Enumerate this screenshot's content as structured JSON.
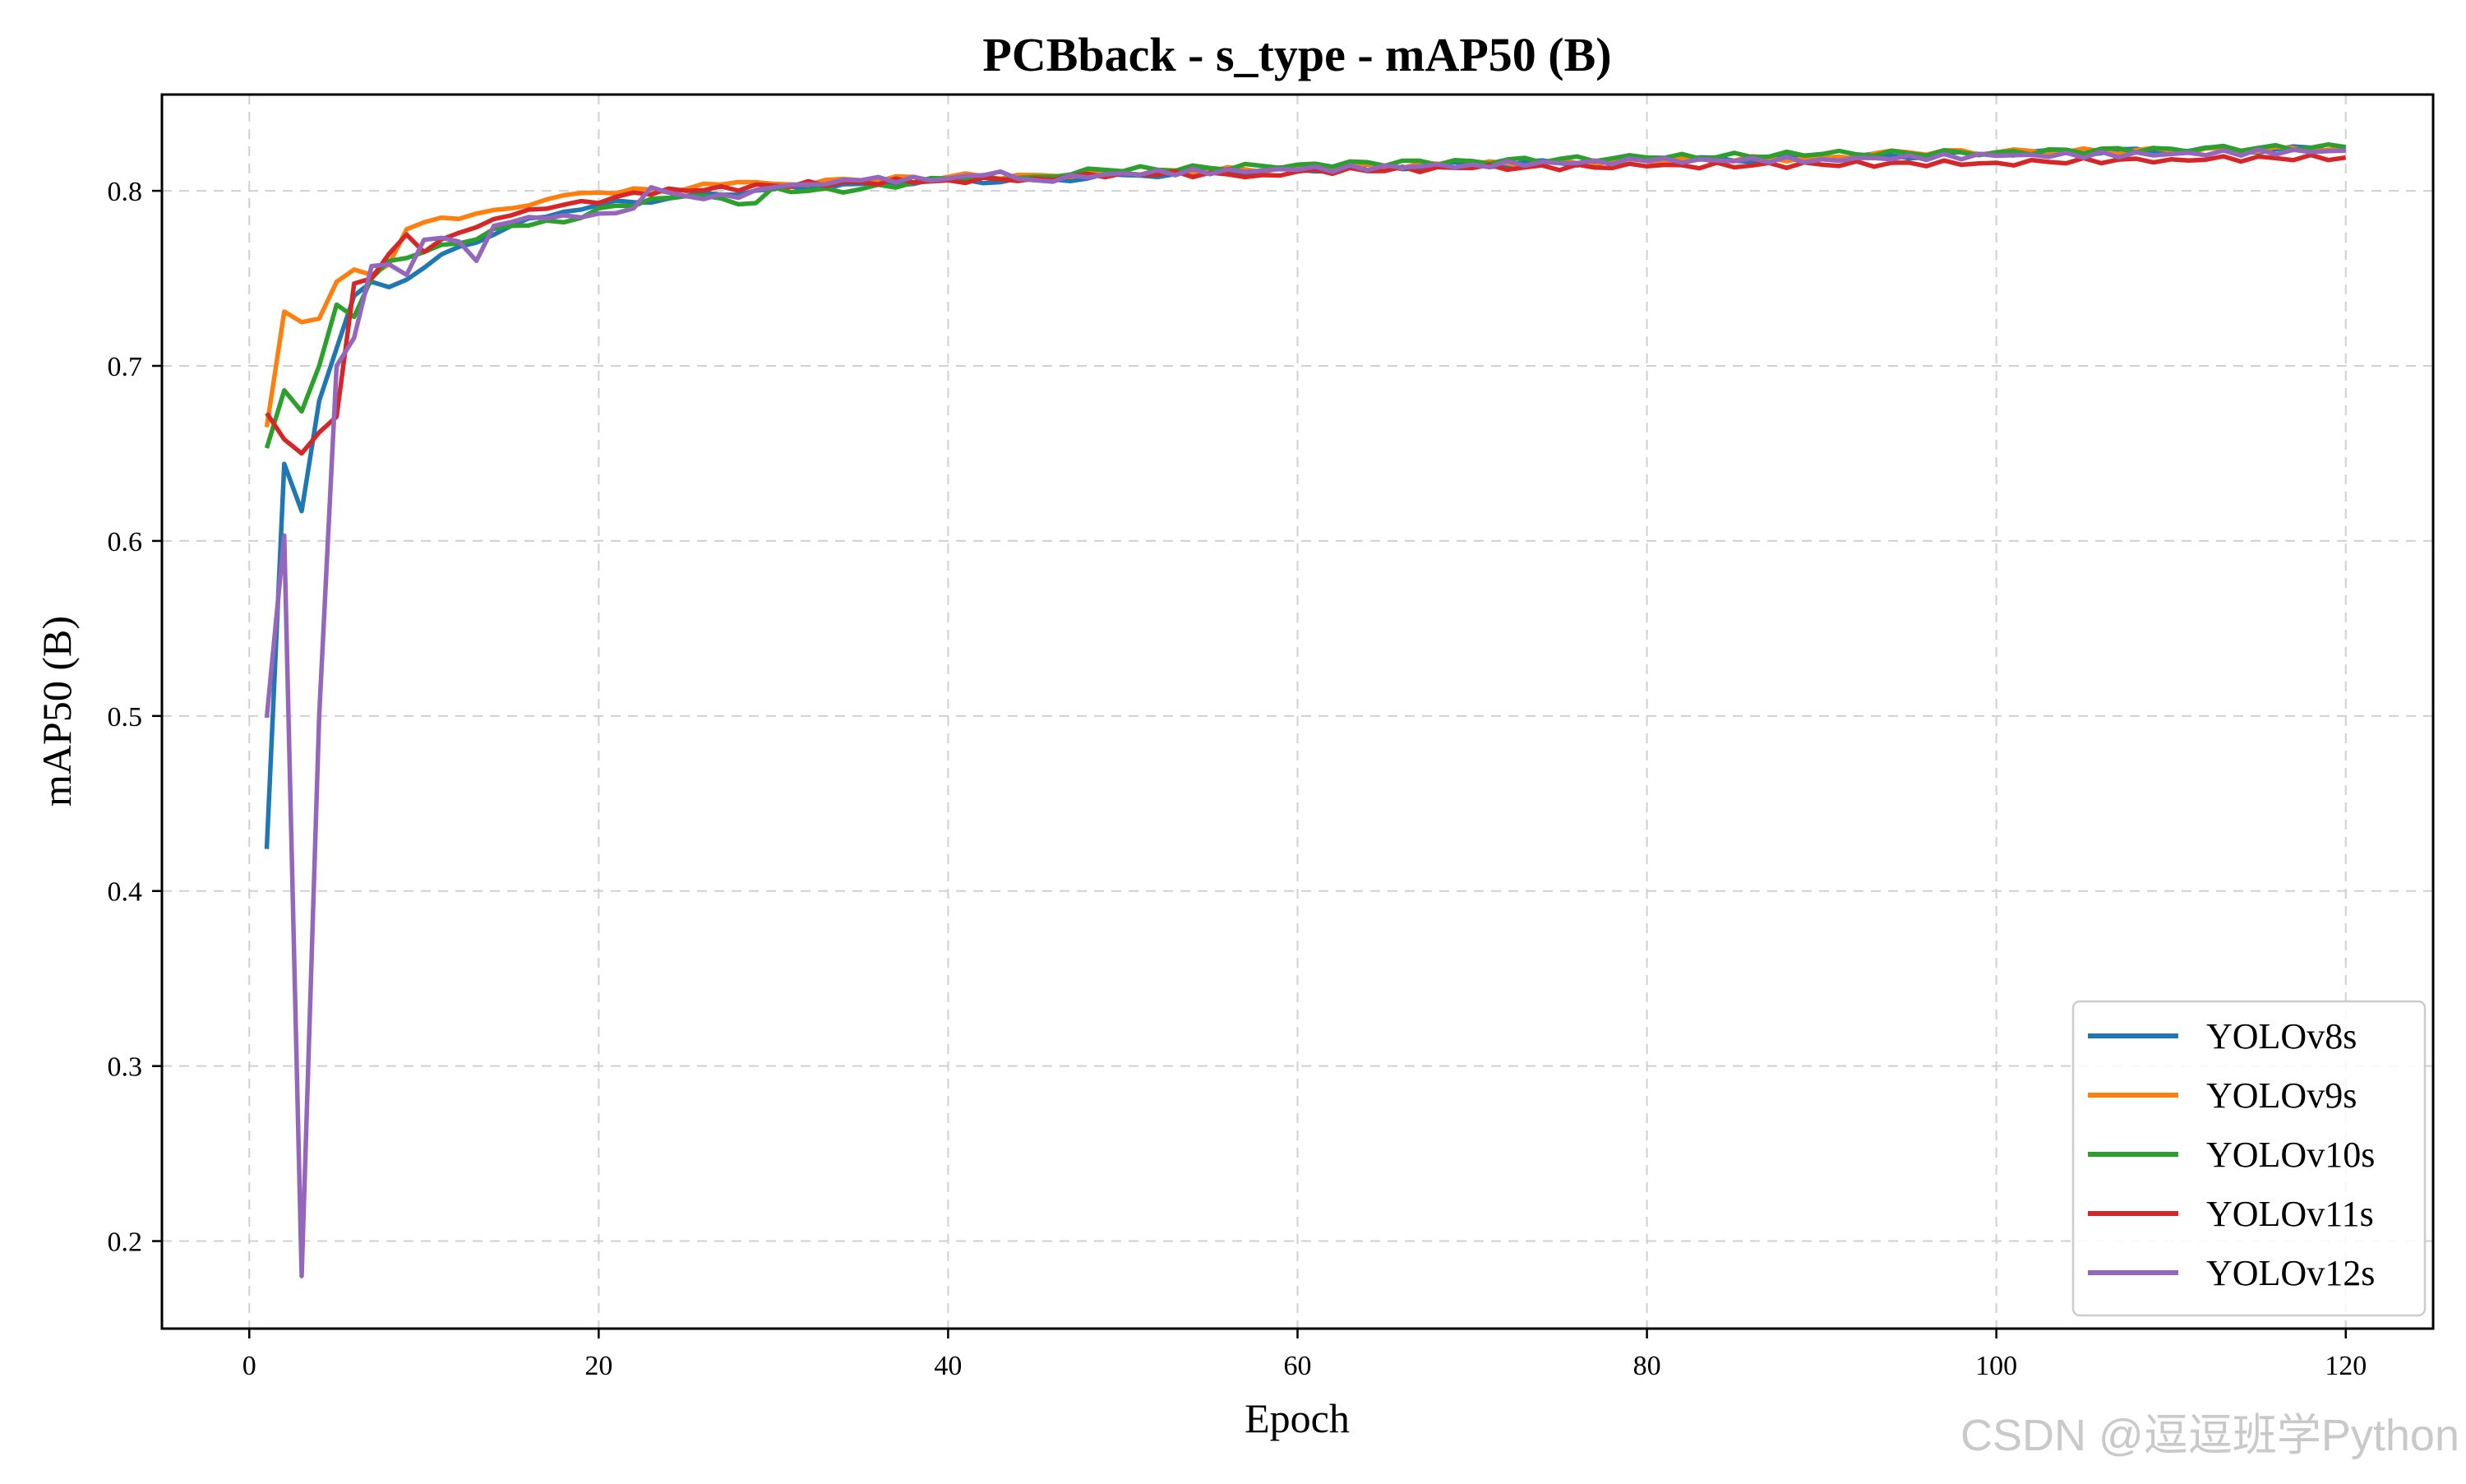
{
  "chart_data": {
    "type": "line",
    "title": "PCBback - s_type - mAP50 (B)",
    "xlabel": "Epoch",
    "ylabel": "mAP50 (B)",
    "xlim": [
      -5,
      125
    ],
    "ylim": [
      0.15,
      0.855
    ],
    "xticks": [
      0,
      20,
      40,
      60,
      80,
      100,
      120
    ],
    "yticks": [
      0.2,
      0.3,
      0.4,
      0.5,
      0.6,
      0.7,
      0.8
    ],
    "grid": true,
    "legend_position": "lower-right",
    "epochs": [
      1,
      120
    ],
    "series": [
      {
        "name": "YOLOv8s",
        "color": "#1f77b4",
        "anchors": [
          [
            1,
            0.424
          ],
          [
            2,
            0.644
          ],
          [
            3,
            0.617
          ],
          [
            4,
            0.68
          ],
          [
            5,
            0.71
          ],
          [
            6,
            0.74
          ],
          [
            7,
            0.748
          ],
          [
            8,
            0.745
          ],
          [
            10,
            0.756
          ],
          [
            12,
            0.768
          ],
          [
            15,
            0.78
          ],
          [
            18,
            0.788
          ],
          [
            20,
            0.792
          ],
          [
            25,
            0.797
          ],
          [
            30,
            0.801
          ],
          [
            35,
            0.804
          ],
          [
            40,
            0.806
          ],
          [
            45,
            0.806
          ],
          [
            50,
            0.809
          ],
          [
            60,
            0.812
          ],
          [
            70,
            0.815
          ],
          [
            80,
            0.817
          ],
          [
            90,
            0.819
          ],
          [
            100,
            0.821
          ],
          [
            110,
            0.823
          ],
          [
            120,
            0.824
          ]
        ]
      },
      {
        "name": "YOLOv9s",
        "color": "#ff7f0e",
        "anchors": [
          [
            1,
            0.665
          ],
          [
            2,
            0.731
          ],
          [
            3,
            0.725
          ],
          [
            4,
            0.727
          ],
          [
            5,
            0.748
          ],
          [
            6,
            0.755
          ],
          [
            7,
            0.752
          ],
          [
            8,
            0.758
          ],
          [
            9,
            0.778
          ],
          [
            10,
            0.782
          ],
          [
            12,
            0.784
          ],
          [
            13,
            0.787
          ],
          [
            15,
            0.79
          ],
          [
            17,
            0.795
          ],
          [
            20,
            0.799
          ],
          [
            25,
            0.801
          ],
          [
            28,
            0.805
          ],
          [
            30,
            0.804
          ],
          [
            35,
            0.806
          ],
          [
            40,
            0.808
          ],
          [
            45,
            0.809
          ],
          [
            50,
            0.81
          ],
          [
            60,
            0.813
          ],
          [
            70,
            0.815
          ],
          [
            80,
            0.817
          ],
          [
            90,
            0.819
          ],
          [
            95,
            0.822
          ],
          [
            100,
            0.822
          ],
          [
            110,
            0.823
          ],
          [
            120,
            0.824
          ]
        ]
      },
      {
        "name": "YOLOv10s",
        "color": "#2ca02c",
        "anchors": [
          [
            1,
            0.653
          ],
          [
            2,
            0.686
          ],
          [
            3,
            0.674
          ],
          [
            4,
            0.7
          ],
          [
            5,
            0.735
          ],
          [
            6,
            0.728
          ],
          [
            7,
            0.75
          ],
          [
            8,
            0.76
          ],
          [
            10,
            0.765
          ],
          [
            12,
            0.77
          ],
          [
            15,
            0.78
          ],
          [
            17,
            0.783
          ],
          [
            18,
            0.782
          ],
          [
            20,
            0.79
          ],
          [
            25,
            0.797
          ],
          [
            29,
            0.793
          ],
          [
            30,
            0.802
          ],
          [
            32,
            0.8
          ],
          [
            35,
            0.801
          ],
          [
            40,
            0.807
          ],
          [
            45,
            0.808
          ],
          [
            49,
            0.812
          ],
          [
            55,
            0.813
          ],
          [
            60,
            0.815
          ],
          [
            70,
            0.817
          ],
          [
            80,
            0.819
          ],
          [
            90,
            0.821
          ],
          [
            100,
            0.822
          ],
          [
            110,
            0.824
          ],
          [
            120,
            0.825
          ]
        ]
      },
      {
        "name": "YOLOv11s",
        "color": "#d62728",
        "anchors": [
          [
            1,
            0.673
          ],
          [
            2,
            0.658
          ],
          [
            3,
            0.65
          ],
          [
            4,
            0.662
          ],
          [
            5,
            0.671
          ],
          [
            6,
            0.747
          ],
          [
            7,
            0.75
          ],
          [
            8,
            0.764
          ],
          [
            9,
            0.775
          ],
          [
            10,
            0.765
          ],
          [
            12,
            0.776
          ],
          [
            15,
            0.786
          ],
          [
            18,
            0.792
          ],
          [
            20,
            0.793
          ],
          [
            22,
            0.799
          ],
          [
            25,
            0.8
          ],
          [
            30,
            0.803
          ],
          [
            35,
            0.805
          ],
          [
            40,
            0.806
          ],
          [
            45,
            0.807
          ],
          [
            50,
            0.81
          ],
          [
            58,
            0.809
          ],
          [
            60,
            0.811
          ],
          [
            70,
            0.813
          ],
          [
            80,
            0.814
          ],
          [
            90,
            0.815
          ],
          [
            100,
            0.816
          ],
          [
            110,
            0.818
          ],
          [
            120,
            0.819
          ]
        ]
      },
      {
        "name": "YOLOv12s",
        "color": "#9467bd",
        "anchors": [
          [
            1,
            0.499
          ],
          [
            2,
            0.603
          ],
          [
            3,
            0.18
          ],
          [
            4,
            0.5
          ],
          [
            5,
            0.7
          ],
          [
            6,
            0.716
          ],
          [
            7,
            0.757
          ],
          [
            8,
            0.758
          ],
          [
            9,
            0.752
          ],
          [
            10,
            0.772
          ],
          [
            12,
            0.771
          ],
          [
            13,
            0.76
          ],
          [
            14,
            0.78
          ],
          [
            16,
            0.785
          ],
          [
            18,
            0.786
          ],
          [
            20,
            0.787
          ],
          [
            22,
            0.79
          ],
          [
            23,
            0.802
          ],
          [
            25,
            0.797
          ],
          [
            28,
            0.796
          ],
          [
            30,
            0.802
          ],
          [
            35,
            0.806
          ],
          [
            40,
            0.807
          ],
          [
            43,
            0.811
          ],
          [
            45,
            0.806
          ],
          [
            50,
            0.81
          ],
          [
            60,
            0.812
          ],
          [
            70,
            0.815
          ],
          [
            80,
            0.817
          ],
          [
            90,
            0.818
          ],
          [
            100,
            0.82
          ],
          [
            110,
            0.821
          ],
          [
            120,
            0.823
          ]
        ]
      }
    ]
  },
  "watermark": "CSDN @逗逗班学Python"
}
